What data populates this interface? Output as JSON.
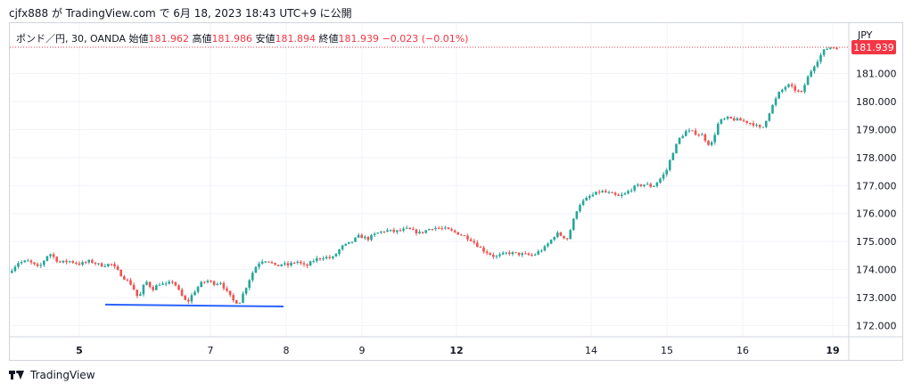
{
  "caption": "cjfx888 が TradingView.com で 6月 18, 2023 18:43 UTC+9 に公開",
  "legend": {
    "symbol": "ポンド／円, 30, OANDA",
    "open_label": "始値",
    "open": "181.962",
    "high_label": "高値",
    "high": "181.986",
    "low_label": "安値",
    "low": "181.894",
    "close_label": "終値",
    "close": "181.939",
    "change": "−0.023 (−0.01%)"
  },
  "currency": "JPY",
  "footer": {
    "brand": "TradingView",
    "logo_icon": "tradingview-logo-icon"
  },
  "colors": {
    "up": "#26a69a",
    "down": "#ef5350",
    "trendline": "#2962ff",
    "last_price": "#f23645",
    "grid": "#f0f3fa",
    "axis_text": "#131722"
  },
  "chart_data": {
    "type": "candlestick",
    "title": "",
    "xlabel": "",
    "ylabel": "",
    "ylim": [
      171.6,
      182.8
    ],
    "y_ticks": [
      "172.000",
      "173.000",
      "174.000",
      "175.000",
      "176.000",
      "177.000",
      "178.000",
      "179.000",
      "180.000",
      "181.000"
    ],
    "x_ticks": [
      {
        "label": "5",
        "bold": true
      },
      {
        "label": "7",
        "bold": false
      },
      {
        "label": "8",
        "bold": false
      },
      {
        "label": "9",
        "bold": false
      },
      {
        "label": "12",
        "bold": true
      },
      {
        "label": "14",
        "bold": false
      },
      {
        "label": "15",
        "bold": false
      },
      {
        "label": "16",
        "bold": false
      },
      {
        "label": "19",
        "bold": true
      }
    ],
    "last_price": "181.939",
    "price_path": [
      [
        "5",
        173.85
      ],
      [
        "5",
        174.25
      ],
      [
        "5",
        174.3
      ],
      [
        "5",
        174.05
      ],
      [
        "5",
        174.6
      ],
      [
        "5",
        174.25
      ],
      [
        "5",
        174.3
      ],
      [
        "5",
        174.2
      ],
      [
        "5",
        174.3
      ],
      [
        "5",
        174.15
      ],
      [
        "5",
        174.2
      ],
      [
        "5",
        173.8
      ],
      [
        "7",
        173.45
      ],
      [
        "7",
        172.95
      ],
      [
        "7",
        173.6
      ],
      [
        "7",
        173.3
      ],
      [
        "7",
        173.5
      ],
      [
        "7",
        173.45
      ],
      [
        "7",
        173.6
      ],
      [
        "7",
        173.15
      ],
      [
        "7",
        172.8
      ],
      [
        "7",
        173.2
      ],
      [
        "7",
        173.5
      ],
      [
        "7",
        173.6
      ],
      [
        "8",
        173.5
      ],
      [
        "8",
        173.55
      ],
      [
        "8",
        173.2
      ],
      [
        "8",
        172.9
      ],
      [
        "8",
        172.8
      ],
      [
        "8",
        173.3
      ],
      [
        "8",
        173.8
      ],
      [
        "8",
        174.2
      ],
      [
        "8",
        174.35
      ],
      [
        "8",
        174.3
      ],
      [
        "8",
        174.1
      ],
      [
        "8",
        174.2
      ],
      [
        "9",
        174.15
      ],
      [
        "9",
        174.3
      ],
      [
        "9",
        174.1
      ],
      [
        "9",
        174.35
      ],
      [
        "9",
        174.45
      ],
      [
        "9",
        174.4
      ],
      [
        "9",
        174.8
      ],
      [
        "9",
        174.95
      ],
      [
        "9",
        175.2
      ],
      [
        "9",
        175.1
      ],
      [
        "9",
        175.3
      ],
      [
        "9",
        175.4
      ],
      [
        "12",
        175.35
      ],
      [
        "12",
        175.45
      ],
      [
        "12",
        175.3
      ],
      [
        "12",
        175.5
      ],
      [
        "12",
        175.45
      ],
      [
        "12",
        175.3
      ],
      [
        "12",
        175.1
      ],
      [
        "12",
        174.7
      ],
      [
        "12",
        174.45
      ],
      [
        "12",
        174.6
      ],
      [
        "12",
        174.55
      ],
      [
        "12",
        174.5
      ],
      [
        "14",
        174.8
      ],
      [
        "14",
        175.3
      ],
      [
        "14",
        175.1
      ],
      [
        "14",
        176.3
      ],
      [
        "14",
        176.6
      ],
      [
        "14",
        176.8
      ],
      [
        "15",
        176.7
      ],
      [
        "15",
        176.6
      ],
      [
        "15",
        176.7
      ],
      [
        "15",
        176.9
      ],
      [
        "15",
        177.0
      ],
      [
        "15",
        177.05
      ],
      [
        "15",
        176.95
      ],
      [
        "15",
        177.2
      ],
      [
        "15",
        177.5
      ],
      [
        "15",
        178.2
      ],
      [
        "15",
        178.7
      ],
      [
        "15",
        178.95
      ],
      [
        "16",
        178.9
      ],
      [
        "16",
        178.8
      ],
      [
        "16",
        178.4
      ],
      [
        "16",
        179.3
      ],
      [
        "16",
        179.4
      ],
      [
        "16",
        179.35
      ],
      [
        "16",
        179.3
      ],
      [
        "16",
        179.2
      ],
      [
        "16",
        179.0
      ],
      [
        "16",
        179.7
      ],
      [
        "16",
        180.3
      ],
      [
        "16",
        180.6
      ],
      [
        "19",
        180.4
      ],
      [
        "19",
        180.3
      ],
      [
        "19",
        180.8
      ],
      [
        "19",
        181.2
      ],
      [
        "19",
        181.5
      ],
      [
        "19",
        181.8
      ],
      [
        "19",
        181.94
      ]
    ],
    "trendline": {
      "start": [
        "5",
        172.75
      ],
      "end": [
        "8",
        172.68
      ]
    }
  }
}
